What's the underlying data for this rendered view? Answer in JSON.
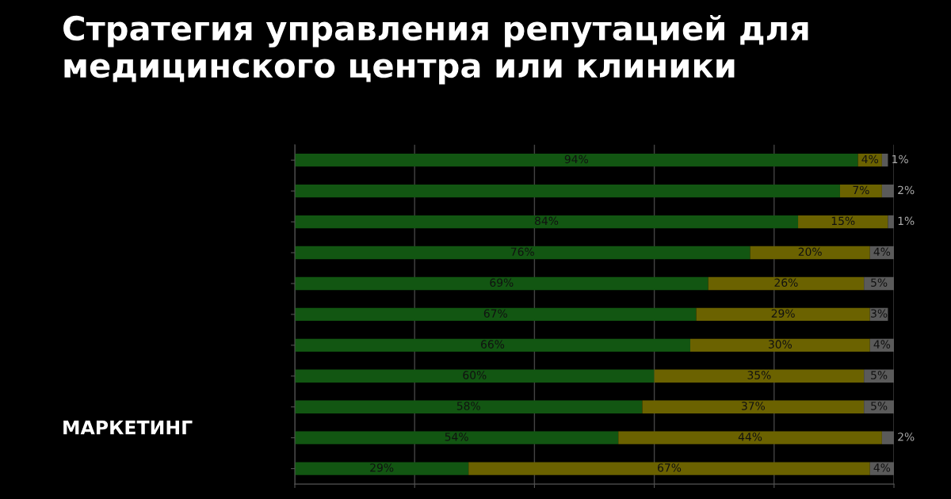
{
  "chart_data": {
    "type": "bar",
    "orientation": "horizontal",
    "stacked": true,
    "title": "Стратегия управления репутацией для медицинского центра или клиники",
    "annotations": [
      "МАРКЕТИНГ"
    ],
    "categories": [
      null,
      null,
      null,
      null,
      null,
      null,
      null,
      null,
      null,
      null,
      null
    ],
    "series": [
      {
        "color": "#125612",
        "values": [
          94,
          91,
          84,
          76,
          69,
          67,
          66,
          60,
          58,
          54,
          29
        ],
        "value_labels": [
          "94%",
          null,
          "84%",
          "76%",
          "69%",
          "67%",
          "66%",
          "60%",
          "58%",
          "54%",
          "29%"
        ]
      },
      {
        "color": "#6b6200",
        "values": [
          4,
          7,
          15,
          20,
          26,
          29,
          30,
          35,
          37,
          44,
          67
        ],
        "value_labels": [
          "4%",
          "7%",
          "15%",
          "20%",
          "26%",
          "29%",
          "30%",
          "35%",
          "37%",
          "44%",
          "67%"
        ]
      },
      {
        "color": "#5a5a5a",
        "values": [
          1,
          2,
          1,
          4,
          5,
          3,
          4,
          5,
          5,
          2,
          4
        ],
        "value_labels": [
          "1%",
          "2%",
          "1%",
          "4%",
          "5%",
          "3%",
          "4%",
          "5%",
          "5%",
          "2%",
          "4%"
        ]
      }
    ],
    "xlim": [
      0,
      100
    ],
    "xticks": [
      {
        "value": 0,
        "label": null
      },
      {
        "value": 20,
        "label": null
      },
      {
        "value": 40,
        "label": null
      },
      {
        "value": 60,
        "label": null
      },
      {
        "value": 80,
        "label": null
      },
      {
        "value": 100,
        "label": null
      }
    ],
    "grid": "x",
    "legend": false
  }
}
